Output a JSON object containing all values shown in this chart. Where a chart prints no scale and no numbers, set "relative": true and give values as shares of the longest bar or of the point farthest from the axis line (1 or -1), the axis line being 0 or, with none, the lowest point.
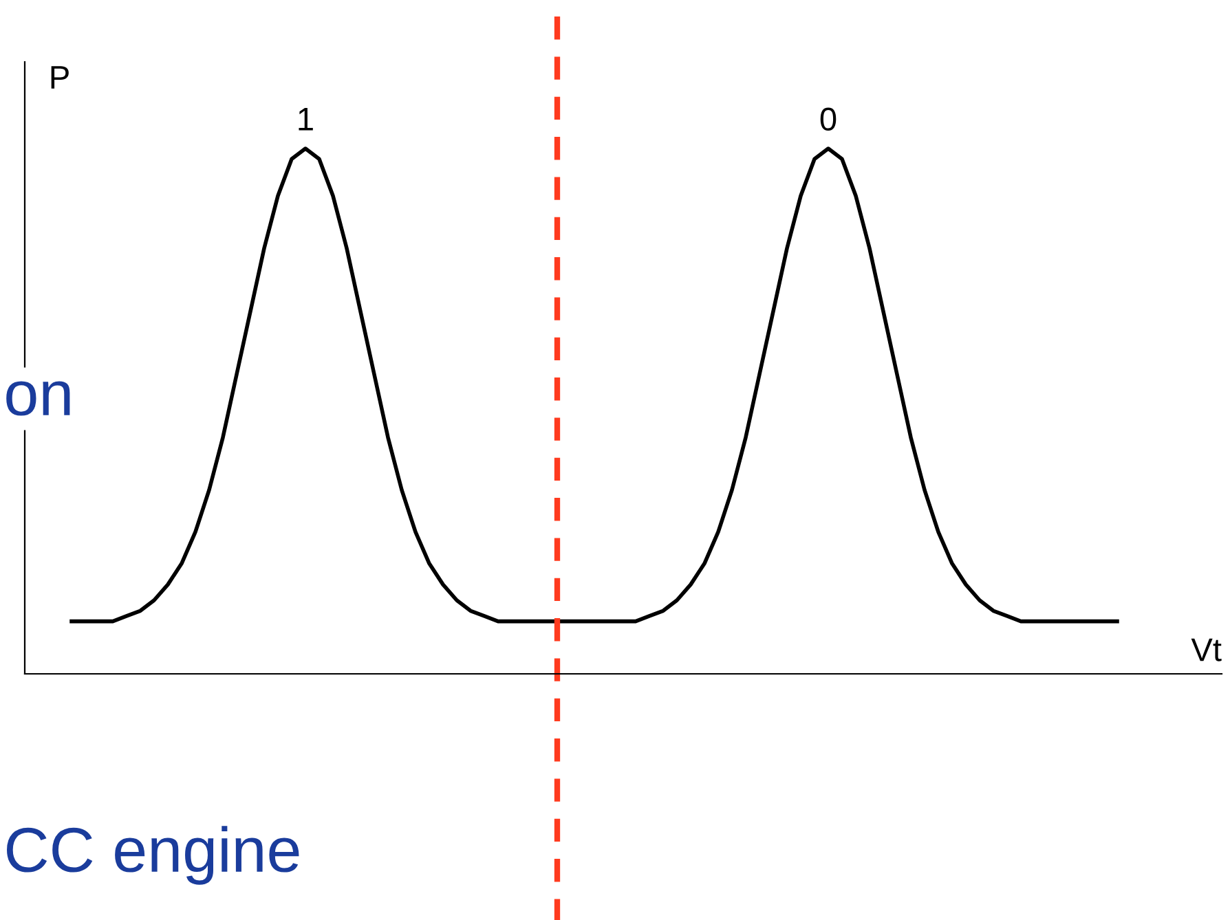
{
  "chart_data": {
    "type": "line",
    "relative": true,
    "xlabel": "Vt",
    "ylabel": "P",
    "legend": false,
    "marker": "none",
    "line_style": "solid",
    "categories": [
      null,
      null,
      null,
      null,
      null,
      null,
      null,
      null,
      null,
      null,
      null,
      null,
      null,
      null,
      null,
      null,
      null,
      null,
      null,
      null,
      null,
      null,
      null,
      null,
      null,
      null,
      null,
      null,
      null,
      null,
      null,
      null,
      null,
      null,
      null,
      null,
      null,
      null,
      null,
      null,
      null,
      null,
      null,
      null,
      null,
      null,
      null,
      null,
      null,
      null,
      null,
      null,
      null,
      null,
      null,
      null,
      null,
      null,
      null,
      null,
      null,
      null,
      null,
      null,
      null,
      null,
      null,
      null,
      null,
      null,
      null,
      null,
      null,
      null,
      null,
      null,
      null
    ],
    "series": [
      {
        "color": "#000000",
        "values": [
          0.1,
          0.1,
          0.1,
          0.1,
          0.11,
          0.12,
          0.14,
          0.17,
          0.21,
          0.27,
          0.35,
          0.45,
          0.57,
          0.69,
          0.81,
          0.91,
          0.98,
          1,
          0.98,
          0.91,
          0.81,
          0.69,
          0.57,
          0.45,
          0.35,
          0.27,
          0.21,
          0.17,
          0.14,
          0.12,
          0.11,
          0.1,
          0.1,
          0.1,
          0.1,
          0.1,
          0.1,
          0.1,
          0.1,
          0.1,
          0.1,
          0.1,
          0.11,
          0.12,
          0.14,
          0.17,
          0.21,
          0.27,
          0.35,
          0.45,
          0.57,
          0.69,
          0.81,
          0.91,
          0.98,
          1,
          0.98,
          0.91,
          0.81,
          0.69,
          0.57,
          0.45,
          0.35,
          0.27,
          0.21,
          0.17,
          0.14,
          0.12,
          0.11,
          0.1,
          0.1,
          0.1,
          0.1,
          0.1,
          0.1,
          0.1,
          0.1
        ]
      }
    ],
    "annotations": [
      {
        "text": "1",
        "y": 1
      },
      {
        "text": "0",
        "y": 1
      },
      "on",
      "CC engine"
    ]
  }
}
